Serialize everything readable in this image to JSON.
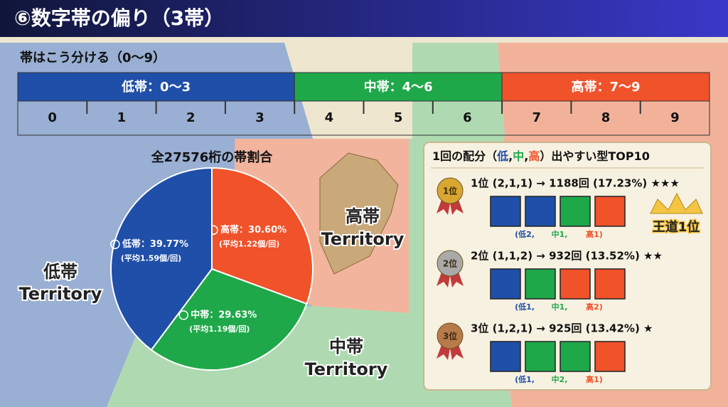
{
  "header": {
    "title": "⑥数字帯の偏り（3帯）"
  },
  "bands": {
    "title": "帯はこう分ける（0〜9）",
    "groups": [
      {
        "label": "低帯：0〜3",
        "color": "#1f4fa8"
      },
      {
        "label": "中帯：4〜6",
        "color": "#1fa84a"
      },
      {
        "label": "高帯：7〜9",
        "color": "#f0522a"
      }
    ],
    "digits": [
      "0",
      "1",
      "2",
      "3",
      "4",
      "5",
      "6",
      "7",
      "8",
      "9"
    ]
  },
  "chart_data": {
    "type": "pie",
    "title": "全27576桁の帯割合",
    "categories": [
      "高帯",
      "中帯",
      "低帯"
    ],
    "values": [
      30.6,
      29.63,
      39.77
    ],
    "value_labels": [
      "高帯：30.60%",
      "中帯：29.63%",
      "低帯：39.77%"
    ],
    "notes": [
      "(平均1.22個/回)",
      "(平均1.19個/回)",
      "(平均1.59個/回)"
    ],
    "colors": [
      "#f0522a",
      "#1fa84a",
      "#1f4fa8"
    ]
  },
  "territories": [
    {
      "name": "高帯",
      "word": "Territory"
    },
    {
      "name": "低帯",
      "word": "Territory"
    },
    {
      "name": "中帯",
      "word": "Territory"
    }
  ],
  "ranking": {
    "title": [
      "1回の配分（",
      "低",
      ",",
      "中",
      ",",
      "高",
      "）出やすい型TOP10"
    ],
    "rows": [
      {
        "badge": "1位",
        "line": "1位 (2,1,1) → 1188回 (17.23%) ★★★",
        "boxes": [
          "#1f4fa8",
          "#1f4fa8",
          "#1fa84a",
          "#f0522a"
        ],
        "labels": [
          "(低2,",
          "中1,",
          "高1)"
        ]
      },
      {
        "badge": "2位",
        "line": "2位 (1,1,2) → 932回 (13.52%) ★★",
        "boxes": [
          "#1f4fa8",
          "#1fa84a",
          "#f0522a",
          "#f0522a"
        ],
        "labels": [
          "(低1,",
          "中1,",
          "高2)"
        ]
      },
      {
        "badge": "3位",
        "line": "3位 (1,2,1) → 925回 (13.42%) ★",
        "boxes": [
          "#1f4fa8",
          "#1fa84a",
          "#1fa84a",
          "#f0522a"
        ],
        "labels": [
          "(低1,",
          "中2,",
          "高1)"
        ]
      }
    ],
    "crown": "王道1位"
  }
}
